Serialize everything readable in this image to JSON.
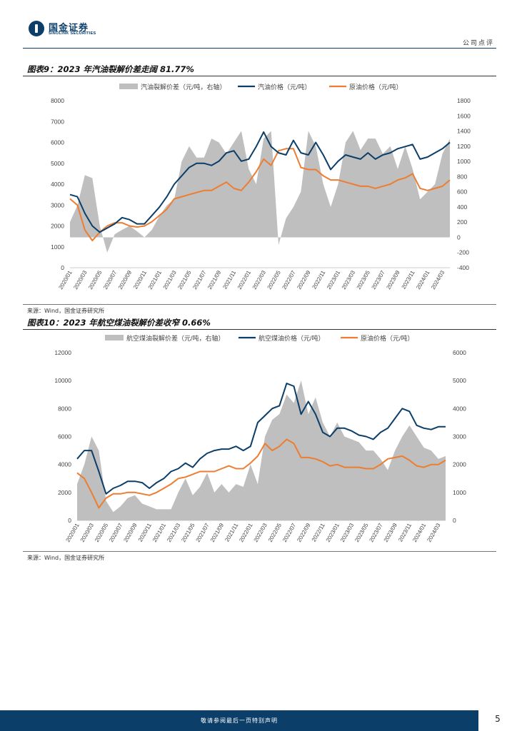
{
  "header": {
    "logo_cn": "国金证券",
    "logo_en": "SINOLINK SECURITIES",
    "doc_type": "公司点评"
  },
  "figure1": {
    "title": "图表9：2023 年汽油裂解价差走阔 81.77%",
    "source": "来源：Wind，国金证券研究所"
  },
  "figure2": {
    "title": "图表10：2023 年航空煤油裂解价差收窄 0.66%",
    "source": "来源：Wind，国金证券研究所"
  },
  "footer": {
    "disclaimer": "敬请参阅最后一页特别声明",
    "page": "5"
  },
  "colors": {
    "area": "#bfbfbf",
    "navy": "#0b3e69",
    "orange": "#ed7d31"
  },
  "chart_data": [
    {
      "type": "area+line",
      "title": "图表9：2023 年汽油裂解价差走阔 81.77%",
      "legend": [
        "汽油裂解价差（元/吨，右轴）",
        "汽油价格（元/吨）",
        "原油价格（元/吨）"
      ],
      "x_ticks": [
        "2020/01",
        "2020/03",
        "2020/05",
        "2020/07",
        "2020/09",
        "2020/11",
        "2021/01",
        "2021/03",
        "2021/05",
        "2021/07",
        "2021/09",
        "2021/11",
        "2022/01",
        "2022/03",
        "2022/05",
        "2022/07",
        "2022/09",
        "2022/11",
        "2023/01",
        "2023/03",
        "2023/05",
        "2023/07",
        "2023/09",
        "2023/11",
        "2024/01",
        "2024/03"
      ],
      "left_axis": {
        "min": 0,
        "max": 8000,
        "ticks": [
          "0",
          "1000",
          "2000",
          "3000",
          "4000",
          "5000",
          "6000",
          "7000",
          "8000"
        ]
      },
      "right_axis": {
        "min": -400,
        "max": 1800,
        "ticks": [
          "-400",
          "-200",
          "0",
          "200",
          "400",
          "600",
          "800",
          "1000",
          "1200",
          "1400",
          "1600",
          "1800"
        ]
      },
      "months": [
        "2020/01",
        "2020/02",
        "2020/03",
        "2020/04",
        "2020/05",
        "2020/06",
        "2020/07",
        "2020/08",
        "2020/09",
        "2020/10",
        "2020/11",
        "2020/12",
        "2021/01",
        "2021/02",
        "2021/03",
        "2021/04",
        "2021/05",
        "2021/06",
        "2021/07",
        "2021/08",
        "2021/09",
        "2021/10",
        "2021/11",
        "2021/12",
        "2022/01",
        "2022/02",
        "2022/03",
        "2022/04",
        "2022/05",
        "2022/06",
        "2022/07",
        "2022/08",
        "2022/09",
        "2022/10",
        "2022/11",
        "2022/12",
        "2023/01",
        "2023/02",
        "2023/03",
        "2023/04",
        "2023/05",
        "2023/06",
        "2023/07",
        "2023/08",
        "2023/09",
        "2023/10",
        "2023/11",
        "2023/12",
        "2024/01",
        "2024/02",
        "2024/03",
        "2024/04"
      ],
      "spread": [
        200,
        420,
        820,
        780,
        150,
        -200,
        40,
        100,
        150,
        80,
        0,
        100,
        280,
        420,
        500,
        1000,
        1200,
        1050,
        1050,
        1300,
        1250,
        1100,
        1250,
        1400,
        900,
        700,
        1300,
        1400,
        -100,
        250,
        400,
        600,
        1400,
        1200,
        700,
        400,
        700,
        1250,
        1400,
        1150,
        1300,
        1300,
        1100,
        1200,
        900,
        1200,
        900,
        500,
        600,
        700,
        1100,
        1300
      ],
      "series": [
        {
          "name": "汽油价格（元/吨）",
          "values": [
            3500,
            3400,
            2600,
            2000,
            1700,
            1900,
            2100,
            2400,
            2300,
            2100,
            2100,
            2500,
            2900,
            3400,
            4000,
            4400,
            4800,
            5000,
            5000,
            4900,
            5100,
            5500,
            5600,
            5100,
            5200,
            5800,
            6500,
            5800,
            5500,
            5400,
            6100,
            5500,
            5400,
            6000,
            5400,
            4700,
            5100,
            5400,
            5300,
            5200,
            5500,
            5200,
            5400,
            5500,
            5700,
            5800,
            5900,
            5200,
            5300,
            5500,
            5700,
            6000
          ]
        },
        {
          "name": "原油价格（元/吨）",
          "values": [
            3300,
            3000,
            1800,
            1300,
            1700,
            2000,
            2150,
            2150,
            2000,
            1950,
            2000,
            2200,
            2500,
            2800,
            3300,
            3400,
            3500,
            3600,
            3700,
            3700,
            3900,
            4100,
            3800,
            3700,
            4100,
            4600,
            5200,
            4900,
            5600,
            5700,
            5700,
            4800,
            4700,
            4700,
            4400,
            4200,
            4200,
            4100,
            4000,
            3900,
            3900,
            3800,
            3900,
            4000,
            4200,
            4300,
            4500,
            3800,
            3700,
            3800,
            3900,
            4200
          ]
        }
      ]
    },
    {
      "type": "area+line",
      "title": "图表10：2023 年航空煤油裂解价差收窄 0.66%",
      "legend": [
        "航空煤油裂解价差（元/吨，右轴）",
        "航空煤油价格（元/吨）",
        "原油价格（元/吨）"
      ],
      "x_ticks": [
        "2020/01",
        "2020/03",
        "2020/05",
        "2020/07",
        "2020/09",
        "2020/11",
        "2021/01",
        "2021/03",
        "2021/05",
        "2021/07",
        "2021/09",
        "2021/11",
        "2022/01",
        "2022/03",
        "2022/05",
        "2022/07",
        "2022/09",
        "2022/11",
        "2023/01",
        "2023/03",
        "2023/05",
        "2023/07",
        "2023/09",
        "2023/11",
        "2024/01",
        "2024/03"
      ],
      "left_axis": {
        "min": 0,
        "max": 12000,
        "ticks": [
          "0",
          "2000",
          "4000",
          "6000",
          "8000",
          "10000",
          "12000"
        ]
      },
      "right_axis": {
        "min": 0,
        "max": 6000,
        "ticks": [
          "0",
          "1000",
          "2000",
          "3000",
          "4000",
          "5000",
          "6000"
        ]
      },
      "months": [
        "2020/01",
        "2020/02",
        "2020/03",
        "2020/04",
        "2020/05",
        "2020/06",
        "2020/07",
        "2020/08",
        "2020/09",
        "2020/10",
        "2020/11",
        "2020/12",
        "2021/01",
        "2021/02",
        "2021/03",
        "2021/04",
        "2021/05",
        "2021/06",
        "2021/07",
        "2021/08",
        "2021/09",
        "2021/10",
        "2021/11",
        "2021/12",
        "2022/01",
        "2022/02",
        "2022/03",
        "2022/04",
        "2022/05",
        "2022/06",
        "2022/07",
        "2022/08",
        "2022/09",
        "2022/10",
        "2022/11",
        "2022/12",
        "2023/01",
        "2023/02",
        "2023/03",
        "2023/04",
        "2023/05",
        "2023/06",
        "2023/07",
        "2023/08",
        "2023/09",
        "2023/10",
        "2023/11",
        "2023/12",
        "2024/01",
        "2024/02",
        "2024/03",
        "2024/04"
      ],
      "spread": [
        1300,
        2000,
        3000,
        2500,
        700,
        300,
        500,
        800,
        900,
        600,
        500,
        400,
        400,
        400,
        1000,
        1500,
        900,
        1200,
        1700,
        1000,
        1300,
        1000,
        1300,
        1200,
        2000,
        1300,
        3000,
        3600,
        3800,
        4500,
        4200,
        5000,
        3800,
        4400,
        3500,
        3000,
        3500,
        3000,
        2900,
        2800,
        2500,
        2500,
        2200,
        1800,
        2500,
        3000,
        3400,
        3000,
        2600,
        2500,
        2200,
        2300
      ],
      "series": [
        {
          "name": "航空煤油价格（元/吨）",
          "values": [
            4400,
            5000,
            5000,
            3500,
            1900,
            2300,
            2500,
            2800,
            2800,
            2700,
            2300,
            2700,
            3000,
            3500,
            3700,
            4100,
            3800,
            4400,
            4800,
            5000,
            5100,
            5100,
            5300,
            5000,
            5300,
            7000,
            7500,
            8000,
            8200,
            9800,
            9600,
            7600,
            8500,
            7600,
            6300,
            6000,
            6600,
            6600,
            6400,
            6100,
            6000,
            5800,
            6300,
            6600,
            7300,
            8000,
            7800,
            6800,
            6600,
            6500,
            6700,
            6700
          ]
        },
        {
          "name": "原油价格（元/吨）",
          "values": [
            3400,
            3000,
            2000,
            900,
            1600,
            1900,
            1900,
            2000,
            2000,
            1900,
            1800,
            2000,
            2300,
            2600,
            3000,
            3100,
            3300,
            3500,
            3500,
            3500,
            3700,
            3900,
            3700,
            3700,
            4100,
            4600,
            5500,
            5000,
            5300,
            5800,
            5500,
            4500,
            4500,
            4400,
            4200,
            3900,
            4000,
            3800,
            3800,
            3800,
            3700,
            3700,
            4000,
            4400,
            4500,
            4600,
            4300,
            3900,
            3800,
            4000,
            4000,
            4300
          ]
        }
      ]
    }
  ]
}
